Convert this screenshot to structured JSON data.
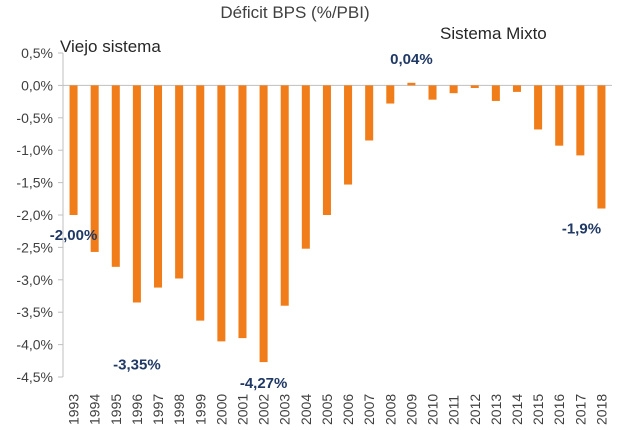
{
  "chart_data": {
    "type": "bar",
    "title": "Déficit BPS (%/PBI)",
    "annotations": [
      "Viejo sistema",
      "Sistema Mixto"
    ],
    "categories": [
      "1993",
      "1994",
      "1995",
      "1996",
      "1997",
      "1998",
      "1999",
      "2000",
      "2001",
      "2002",
      "2003",
      "2004",
      "2005",
      "2006",
      "2007",
      "2008",
      "2009",
      "2010",
      "2011",
      "2012",
      "2013",
      "2014",
      "2015",
      "2016",
      "2017",
      "2018"
    ],
    "values": [
      -2.0,
      -2.57,
      -2.8,
      -3.35,
      -3.12,
      -2.98,
      -3.63,
      -3.95,
      -3.9,
      -4.27,
      -3.4,
      -2.52,
      -2.0,
      -1.53,
      -0.85,
      -0.28,
      0.04,
      -0.22,
      -0.12,
      -0.04,
      -0.24,
      -0.1,
      -0.68,
      -0.93,
      -1.08,
      -1.9
    ],
    "data_labels": [
      {
        "index": 0,
        "text": "-2,00%"
      },
      {
        "index": 3,
        "text": "-3,35%"
      },
      {
        "index": 9,
        "text": "-4,27%"
      },
      {
        "index": 16,
        "text": "0,04%"
      },
      {
        "index": 25,
        "text": "-1,9%"
      }
    ],
    "ylim": [
      -4.5,
      0.5
    ],
    "yticks": [
      "0,5%",
      "0,0%",
      "-0,5%",
      "-1,0%",
      "-1,5%",
      "-2,0%",
      "-2,5%",
      "-3,0%",
      "-3,5%",
      "-4,0%",
      "-4,5%"
    ],
    "xlabel": "",
    "ylabel": "",
    "grid": false,
    "legend": "none",
    "colors": {
      "bar": "#f07d1a",
      "label": "#1f3864",
      "axis": "#bfbfbf",
      "text": "#404040"
    }
  }
}
